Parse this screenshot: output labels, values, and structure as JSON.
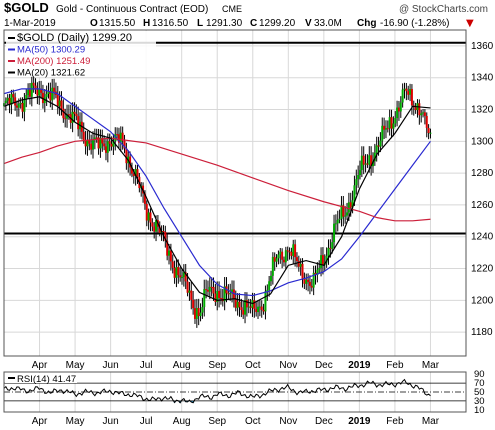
{
  "header": {
    "symbol": "$GOLD",
    "description": "Gold - Continuous Contract (EOD)",
    "exchange": "CME",
    "copyright": "@ StockCharts.com",
    "date": "1-Mar-2019",
    "open_label": "O",
    "open_value": "1315.50",
    "high_label": "H",
    "high_value": "1316.50",
    "low_label": "L",
    "low_value": "1291.30",
    "close_label": "C",
    "close_value": "1299.20",
    "volume_label": "V",
    "volume_value": "33.0M",
    "change_label": "Chg",
    "change_value": "-16.90 (-1.28%)",
    "change_arrow": "▼"
  },
  "colors": {
    "price_bars": "#000000",
    "up_bar": "#00aa00",
    "down_bar": "#dd0000",
    "ma50": "#2a2ad0",
    "ma200": "#cc1f3a",
    "ma20": "#000000",
    "rsi": "#000000",
    "rsi_fill": "#1f9ad6",
    "change_negative": "#cc0000"
  },
  "chart_data": [
    {
      "type": "line",
      "panel": "price",
      "legend_placement": "top-left",
      "legend": [
        {
          "label": "$GOLD (Daily) 1299.20",
          "color": "#000000"
        },
        {
          "label": "MA(50) 1300.29",
          "color": "#2a2ad0"
        },
        {
          "label": "MA(200) 1251.49",
          "color": "#cc1f3a"
        },
        {
          "label": "MA(20) 1321.62",
          "color": "#000000"
        }
      ],
      "ylim": [
        1165,
        1370
      ],
      "y_ticks": [
        1180,
        1200,
        1220,
        1240,
        1260,
        1280,
        1300,
        1320,
        1340,
        1360
      ],
      "x_range": [
        0,
        13
      ],
      "x_ticks": [
        {
          "label": "Apr",
          "x": 1.0,
          "bold": false
        },
        {
          "label": "May",
          "x": 2.0,
          "bold": false
        },
        {
          "label": "Jun",
          "x": 3.0,
          "bold": false
        },
        {
          "label": "Jul",
          "x": 4.0,
          "bold": false
        },
        {
          "label": "Aug",
          "x": 5.0,
          "bold": false
        },
        {
          "label": "Sep",
          "x": 6.0,
          "bold": false
        },
        {
          "label": "Oct",
          "x": 7.0,
          "bold": false
        },
        {
          "label": "Nov",
          "x": 8.0,
          "bold": false
        },
        {
          "label": "Dec",
          "x": 9.0,
          "bold": false
        },
        {
          "label": "2019",
          "x": 10.0,
          "bold": true
        },
        {
          "label": "Feb",
          "x": 11.0,
          "bold": false
        },
        {
          "label": "Mar",
          "x": 12.0,
          "bold": false
        }
      ],
      "horizontal_lines": [
        1362,
        1242
      ],
      "grid": true,
      "series": [
        {
          "name": "$GOLD (Daily)",
          "kind": "price",
          "x": [
            0,
            0.5,
            1,
            1.5,
            2,
            2.4,
            2.7,
            3,
            3.3,
            3.7,
            4,
            4.3,
            4.6,
            5,
            5.3,
            5.5,
            5.7,
            6,
            6.3,
            6.7,
            7,
            7.3,
            7.7,
            8,
            8.3,
            8.7,
            9,
            9.3,
            9.6,
            10,
            10.3,
            10.6,
            11,
            11.3,
            11.7,
            12
          ],
          "values": [
            1322,
            1326,
            1333,
            1325,
            1312,
            1300,
            1296,
            1302,
            1299,
            1280,
            1255,
            1248,
            1230,
            1214,
            1198,
            1193,
            1204,
            1206,
            1202,
            1198,
            1192,
            1200,
            1228,
            1233,
            1220,
            1210,
            1226,
            1245,
            1255,
            1280,
            1290,
            1300,
            1318,
            1330,
            1322,
            1299
          ]
        },
        {
          "name": "MA(50)",
          "kind": "line",
          "x": [
            0,
            0.5,
            1,
            1.5,
            2,
            2.5,
            3,
            3.5,
            4,
            4.5,
            5,
            5.5,
            6,
            6.5,
            7,
            7.5,
            8,
            8.5,
            9,
            9.5,
            10,
            10.5,
            11,
            11.5,
            12
          ],
          "values": [
            1330,
            1333,
            1333,
            1330,
            1322,
            1314,
            1306,
            1294,
            1278,
            1258,
            1240,
            1222,
            1210,
            1204,
            1203,
            1206,
            1211,
            1214,
            1218,
            1226,
            1240,
            1255,
            1270,
            1285,
            1300
          ]
        },
        {
          "name": "MA(200)",
          "kind": "line",
          "x": [
            0,
            0.5,
            1,
            1.5,
            2,
            3,
            4,
            5,
            6,
            7,
            8,
            9,
            10,
            10.5,
            11,
            11.5,
            12
          ],
          "values": [
            1286,
            1290,
            1293,
            1297,
            1300,
            1302,
            1299,
            1292,
            1285,
            1277,
            1269,
            1262,
            1256,
            1252,
            1250,
            1250,
            1251
          ]
        },
        {
          "name": "MA(20)",
          "kind": "line",
          "x": [
            0,
            0.5,
            1,
            1.5,
            2,
            2.5,
            3,
            3.5,
            4,
            4.5,
            5,
            5.5,
            6,
            6.5,
            7,
            7.5,
            8,
            8.5,
            9,
            9.5,
            10,
            10.5,
            11,
            11.5,
            12
          ],
          "values": [
            1322,
            1326,
            1328,
            1322,
            1312,
            1305,
            1302,
            1288,
            1265,
            1240,
            1220,
            1205,
            1200,
            1201,
            1198,
            1204,
            1222,
            1225,
            1222,
            1240,
            1270,
            1292,
            1305,
            1322,
            1321
          ]
        }
      ]
    },
    {
      "type": "line",
      "panel": "indicator",
      "legend": [
        {
          "label": "RSI(14) 41.47",
          "color": "#000000"
        }
      ],
      "ylim": [
        5,
        95
      ],
      "y_ticks": [
        10,
        30,
        50,
        70,
        90
      ],
      "reference_lines": [
        {
          "value": 70,
          "style": "solid"
        },
        {
          "value": 50,
          "style": "dashdot"
        },
        {
          "value": 30,
          "style": "solid"
        }
      ],
      "x_range": [
        0,
        13
      ],
      "x_ticks": [
        {
          "label": "Apr",
          "x": 1.0,
          "bold": false
        },
        {
          "label": "May",
          "x": 2.0,
          "bold": false
        },
        {
          "label": "Jun",
          "x": 3.0,
          "bold": false
        },
        {
          "label": "Jul",
          "x": 4.0,
          "bold": false
        },
        {
          "label": "Aug",
          "x": 5.0,
          "bold": false
        },
        {
          "label": "Sep",
          "x": 6.0,
          "bold": false
        },
        {
          "label": "Oct",
          "x": 7.0,
          "bold": false
        },
        {
          "label": "Nov",
          "x": 8.0,
          "bold": false
        },
        {
          "label": "Dec",
          "x": 9.0,
          "bold": false
        },
        {
          "label": "2019",
          "x": 10.0,
          "bold": true
        },
        {
          "label": "Feb",
          "x": 11.0,
          "bold": false
        },
        {
          "label": "Mar",
          "x": 12.0,
          "bold": false
        }
      ],
      "series": [
        {
          "name": "RSI(14)",
          "x": [
            0,
            0.3,
            0.6,
            1,
            1.3,
            1.6,
            2,
            2.3,
            2.6,
            3,
            3.3,
            3.6,
            4,
            4.2,
            4.5,
            4.8,
            5,
            5.2,
            5.5,
            5.8,
            6,
            6.3,
            6.6,
            7,
            7.3,
            7.6,
            8,
            8.3,
            8.6,
            9,
            9.3,
            9.6,
            10,
            10.3,
            10.6,
            11,
            11.3,
            11.6,
            12
          ],
          "values": [
            55,
            60,
            52,
            58,
            48,
            55,
            45,
            50,
            48,
            52,
            46,
            44,
            35,
            32,
            38,
            30,
            33,
            25,
            40,
            38,
            45,
            42,
            48,
            38,
            45,
            55,
            60,
            48,
            52,
            55,
            60,
            58,
            65,
            70,
            66,
            68,
            72,
            62,
            41.47
          ]
        }
      ]
    }
  ]
}
